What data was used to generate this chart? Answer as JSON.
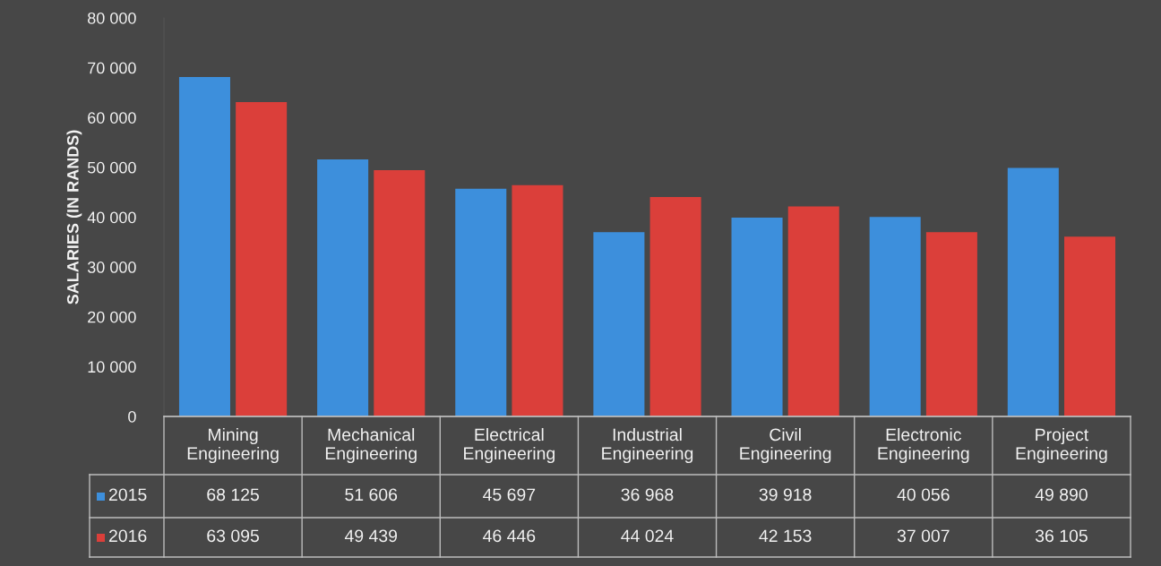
{
  "chart_data": {
    "type": "bar",
    "ylabel": "SALARIES (IN RANDS)",
    "categories": [
      "Mining Engineering",
      "Mechanical Engineering",
      "Electrical Engineering",
      "Industrial Engineering",
      "Civil Engineering",
      "Electronic Engineering",
      "Project Engineering"
    ],
    "series": [
      {
        "name": "2015",
        "color": "#3d8fdc",
        "values": [
          68125,
          51606,
          45697,
          36968,
          39918,
          40056,
          49890
        ],
        "value_labels": [
          "68 125",
          "51 606",
          "45 697",
          "36 968",
          "39 918",
          "40 056",
          "49 890"
        ]
      },
      {
        "name": "2016",
        "color": "#db3f3a",
        "values": [
          63095,
          49439,
          46446,
          44024,
          42153,
          37007,
          36105
        ],
        "value_labels": [
          "63 095",
          "49 439",
          "46 446",
          "44 024",
          "42 153",
          "37 007",
          "36 105"
        ]
      }
    ],
    "ylim": [
      0,
      80000
    ],
    "yticks": [
      {
        "value": 0,
        "label": "0"
      },
      {
        "value": 10000,
        "label": "10 000"
      },
      {
        "value": 20000,
        "label": "20 000"
      },
      {
        "value": 30000,
        "label": "30 000"
      },
      {
        "value": 40000,
        "label": "40 000"
      },
      {
        "value": 50000,
        "label": "50 000"
      },
      {
        "value": 60000,
        "label": "60 000"
      },
      {
        "value": 70000,
        "label": "70 000"
      },
      {
        "value": 80000,
        "label": "80 000"
      }
    ],
    "grid": false,
    "legend": "bottom left"
  }
}
